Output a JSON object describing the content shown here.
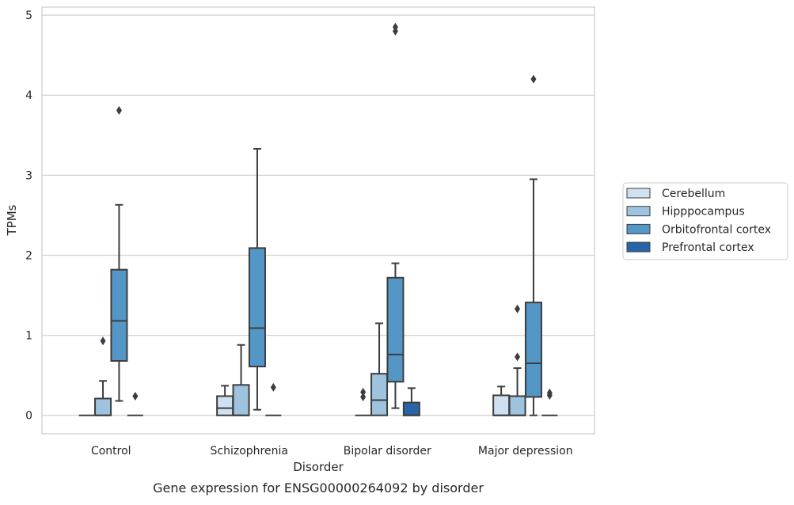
{
  "chart_data": {
    "type": "box",
    "caption": "Gene expression for ENSG00000264092 by disorder",
    "xlabel": "Disorder",
    "ylabel": "TPMs",
    "ylim": [
      -0.23,
      5.1
    ],
    "yticks": [
      0,
      1,
      2,
      3,
      4,
      5
    ],
    "grid": "horizontal",
    "legend_position": "right",
    "categories": [
      "Control",
      "Schizophrenia",
      "Bipolar disorder",
      "Major depression"
    ],
    "series": [
      {
        "name": "Cerebellum",
        "color": "#cfe1f1",
        "boxes": [
          {
            "q1": 0,
            "median": 0,
            "q3": 0,
            "whisker_low": 0,
            "whisker_high": 0,
            "outliers": []
          },
          {
            "q1": 0,
            "median": 0.09,
            "q3": 0.24,
            "whisker_low": 0,
            "whisker_high": 0.37,
            "outliers": []
          },
          {
            "q1": 0,
            "median": 0,
            "q3": 0,
            "whisker_low": 0,
            "whisker_high": 0,
            "outliers": [
              0.23,
              0.29
            ]
          },
          {
            "q1": 0,
            "median": 0,
            "q3": 0.25,
            "whisker_low": 0,
            "whisker_high": 0.36,
            "outliers": []
          }
        ]
      },
      {
        "name": "Hipppocampus",
        "color": "#9dc3de",
        "boxes": [
          {
            "q1": 0,
            "median": 0,
            "q3": 0.21,
            "whisker_low": 0,
            "whisker_high": 0.43,
            "outliers": [
              0.93
            ]
          },
          {
            "q1": 0,
            "median": 0,
            "q3": 0.38,
            "whisker_low": 0,
            "whisker_high": 0.88,
            "outliers": []
          },
          {
            "q1": 0,
            "median": 0.19,
            "q3": 0.52,
            "whisker_low": 0,
            "whisker_high": 1.15,
            "outliers": []
          },
          {
            "q1": 0,
            "median": 0,
            "q3": 0.24,
            "whisker_low": 0,
            "whisker_high": 0.59,
            "outliers": [
              0.73,
              1.33
            ]
          }
        ]
      },
      {
        "name": "Orbitofrontal cortex",
        "color": "#5496c6",
        "boxes": [
          {
            "q1": 0.68,
            "median": 1.18,
            "q3": 1.82,
            "whisker_low": 0.18,
            "whisker_high": 2.63,
            "outliers": [
              3.81
            ]
          },
          {
            "q1": 0.61,
            "median": 1.09,
            "q3": 2.09,
            "whisker_low": 0.07,
            "whisker_high": 3.33,
            "outliers": []
          },
          {
            "q1": 0.42,
            "median": 0.76,
            "q3": 1.72,
            "whisker_low": 0.09,
            "whisker_high": 1.9,
            "outliers": [
              4.8,
              4.85
            ]
          },
          {
            "q1": 0.23,
            "median": 0.65,
            "q3": 1.41,
            "whisker_low": 0,
            "whisker_high": 2.95,
            "outliers": [
              4.2
            ]
          }
        ]
      },
      {
        "name": "Prefrontal cortex",
        "color": "#2765a8",
        "boxes": [
          {
            "q1": 0,
            "median": 0,
            "q3": 0,
            "whisker_low": 0,
            "whisker_high": 0,
            "outliers": [
              0.24
            ]
          },
          {
            "q1": 0,
            "median": 0,
            "q3": 0,
            "whisker_low": 0,
            "whisker_high": 0,
            "outliers": [
              0.35
            ]
          },
          {
            "q1": 0,
            "median": 0,
            "q3": 0.16,
            "whisker_low": 0,
            "whisker_high": 0.34,
            "outliers": []
          },
          {
            "q1": 0,
            "median": 0,
            "q3": 0,
            "whisker_low": 0,
            "whisker_high": 0,
            "outliers": [
              0.25,
              0.28
            ]
          }
        ]
      }
    ]
  }
}
